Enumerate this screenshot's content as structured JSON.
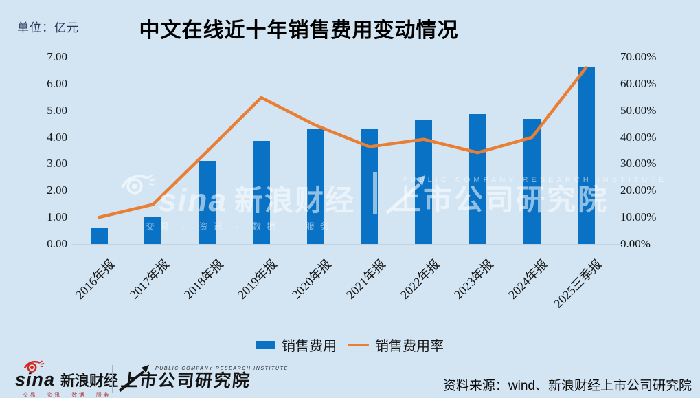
{
  "page": {
    "background_color": "#d3e5f3",
    "unit_label": "单位：亿元",
    "title": "中文在线近十年销售费用变动情况"
  },
  "chart_data": {
    "type": "bar+line",
    "title": "中文在线近十年销售费用变动情况",
    "unit": "亿元",
    "categories": [
      "2016年报",
      "2017年报",
      "2018年报",
      "2019年报",
      "2020年报",
      "2021年报",
      "2022年报",
      "2023年报",
      "2024年报",
      "2025三季报"
    ],
    "series": [
      {
        "name": "销售费用",
        "type": "bar",
        "axis": "left",
        "unit": "亿元",
        "color": "#0a72c4",
        "values": [
          0.62,
          1.03,
          3.12,
          3.85,
          4.3,
          4.32,
          4.64,
          4.87,
          4.68,
          6.65
        ]
      },
      {
        "name": "销售费用率",
        "type": "line",
        "axis": "right",
        "unit": "%",
        "color": "#e87f35",
        "values": [
          10.0,
          14.8,
          34.7,
          54.8,
          44.5,
          36.4,
          39.2,
          34.2,
          39.9,
          66.0
        ]
      }
    ],
    "left_axis": {
      "min": 0,
      "max": 7,
      "ticks": [
        "0.00",
        "1.00",
        "2.00",
        "3.00",
        "4.00",
        "5.00",
        "6.00",
        "7.00"
      ]
    },
    "right_axis": {
      "min": 0,
      "max": 70,
      "ticks": [
        "0.00%",
        "10.00%",
        "20.00%",
        "30.00%",
        "40.00%",
        "50.00%",
        "60.00%",
        "70.00%"
      ]
    },
    "grid": false,
    "legend_position": "bottom-center"
  },
  "legend": {
    "items": [
      {
        "label": "销售费用",
        "swatch": "bar",
        "color": "#0a72c4"
      },
      {
        "label": "销售费用率",
        "swatch": "line",
        "color": "#e87f35"
      }
    ]
  },
  "watermark": {
    "sina": "sina",
    "brand": "新浪财经",
    "tagline": "交易 · 资讯 · 数据 · 服务",
    "institute_en": "PUBLIC COMPANY RESEARCH INSTITUTE",
    "institute_cn": "上市公司研究院"
  },
  "footer": {
    "sina": "sina",
    "brand": "新浪财经",
    "tagline": "交易 · 资讯 · 数据 · 服务",
    "institute_en": "PUBLIC COMPANY RESEARCH INSTITUTE",
    "institute_cn": "上市公司研究院",
    "source": "资料来源：wind、新浪财经上市公司研究院"
  }
}
